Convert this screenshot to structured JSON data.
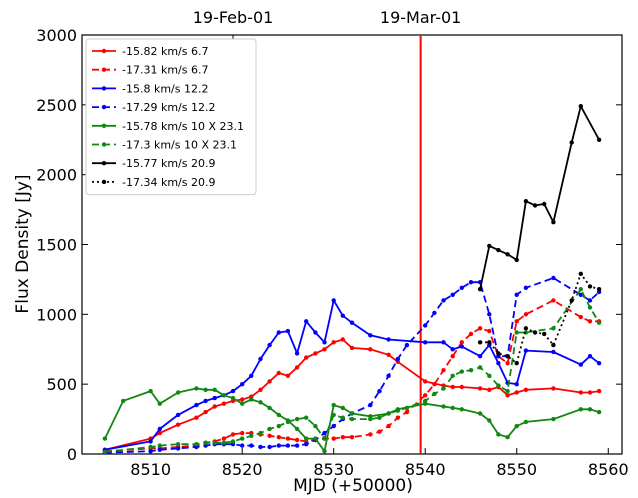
{
  "chart_data": {
    "type": "line",
    "title": "",
    "xlabel": "MJD (+50000)",
    "ylabel": "Flux Density [Jy]",
    "xlim": [
      8502.5,
      8561.5
    ],
    "ylim": [
      0,
      3000
    ],
    "xticks": [
      8510,
      8520,
      8530,
      8540,
      8550,
      8560
    ],
    "yticks": [
      0,
      500,
      1000,
      1500,
      2000,
      2500,
      3000
    ],
    "top_axis": {
      "ticks": [
        {
          "x": 8519,
          "label": "19-Feb-01"
        },
        {
          "x": 8539.5,
          "label": "19-Mar-01"
        }
      ]
    },
    "vertical_line": {
      "x": 8539.5,
      "color": "#ff0000"
    },
    "grid": false,
    "legend_position": "top-left",
    "series": [
      {
        "name": "-15.82 km/s 6.7",
        "color": "#ff0000",
        "style": "solid",
        "x": [
          8505,
          8510,
          8511,
          8513,
          8515,
          8516,
          8517,
          8518,
          8519,
          8520,
          8521,
          8522,
          8523,
          8524,
          8525,
          8526,
          8527,
          8528,
          8529,
          8530,
          8531,
          8532,
          8534,
          8536,
          8537,
          8540,
          8542,
          8543,
          8544,
          8546,
          8547,
          8548,
          8549,
          8550,
          8551,
          8554,
          8557,
          8558,
          8559
        ],
        "y": [
          30,
          110,
          150,
          210,
          260,
          300,
          340,
          360,
          380,
          390,
          410,
          460,
          520,
          580,
          560,
          620,
          690,
          720,
          750,
          800,
          820,
          760,
          750,
          710,
          660,
          520,
          490,
          480,
          480,
          470,
          460,
          480,
          420,
          440,
          460,
          470,
          440,
          440,
          450
        ]
      },
      {
        "name": "-17.31 km/s 6.7",
        "color": "#ff0000",
        "style": "dashed",
        "x": [
          8505,
          8510,
          8511,
          8513,
          8515,
          8516,
          8517,
          8518,
          8519,
          8520,
          8521,
          8522,
          8523,
          8524,
          8525,
          8526,
          8527,
          8528,
          8529,
          8530,
          8531,
          8532,
          8534,
          8535,
          8536,
          8537,
          8538,
          8540,
          8541,
          8542,
          8543,
          8544,
          8545,
          8546,
          8547,
          8548,
          8549,
          8550,
          8551,
          8554,
          8557,
          8558,
          8559
        ],
        "y": [
          20,
          40,
          40,
          50,
          60,
          80,
          90,
          110,
          140,
          150,
          150,
          140,
          130,
          120,
          110,
          100,
          90,
          100,
          110,
          110,
          120,
          120,
          140,
          160,
          200,
          260,
          300,
          420,
          500,
          600,
          700,
          800,
          860,
          900,
          880,
          700,
          650,
          950,
          1000,
          1100,
          980,
          950,
          950
        ]
      },
      {
        "name": "-15.8 km/s 12.2",
        "color": "#0000ff",
        "style": "solid",
        "x": [
          8505,
          8510,
          8511,
          8513,
          8515,
          8516,
          8517,
          8518,
          8519,
          8520,
          8521,
          8522,
          8523,
          8524,
          8525,
          8526,
          8527,
          8528,
          8529,
          8530,
          8531,
          8532,
          8534,
          8536,
          8540,
          8542,
          8543,
          8544,
          8546,
          8547,
          8548,
          8549,
          8550,
          8551,
          8554,
          8557,
          8558,
          8559
        ],
        "y": [
          30,
          90,
          180,
          280,
          350,
          380,
          400,
          420,
          450,
          500,
          560,
          680,
          780,
          870,
          880,
          720,
          950,
          870,
          800,
          1100,
          990,
          940,
          850,
          820,
          800,
          800,
          750,
          770,
          700,
          780,
          650,
          510,
          500,
          740,
          730,
          640,
          700,
          650
        ]
      },
      {
        "name": "-17.29 km/s 12.2",
        "color": "#0000ff",
        "style": "dashed",
        "x": [
          8505,
          8510,
          8511,
          8513,
          8515,
          8516,
          8517,
          8518,
          8519,
          8520,
          8521,
          8522,
          8523,
          8524,
          8525,
          8526,
          8527,
          8528,
          8529,
          8530,
          8531,
          8532,
          8534,
          8535,
          8536,
          8537,
          8538,
          8540,
          8541,
          8542,
          8543,
          8544,
          8545,
          8546,
          8547,
          8548,
          8549,
          8550,
          8551,
          8554,
          8557,
          8558,
          8559
        ],
        "y": [
          10,
          20,
          30,
          40,
          50,
          60,
          70,
          70,
          70,
          60,
          60,
          50,
          50,
          60,
          60,
          60,
          70,
          100,
          150,
          200,
          250,
          290,
          350,
          450,
          560,
          680,
          780,
          920,
          1010,
          1100,
          1140,
          1190,
          1230,
          1230,
          1000,
          700,
          700,
          1140,
          1190,
          1260,
          1140,
          1100,
          1160
        ]
      },
      {
        "name": "-15.78 km/s 10 X 23.1",
        "color": "#118811",
        "style": "solid",
        "x": [
          8505,
          8507,
          8510,
          8511,
          8513,
          8515,
          8516,
          8517,
          8518,
          8519,
          8520,
          8521,
          8522,
          8523,
          8524,
          8525,
          8526,
          8527,
          8528,
          8529,
          8530,
          8531,
          8532,
          8534,
          8536,
          8537,
          8540,
          8542,
          8543,
          8544,
          8546,
          8547,
          8548,
          8549,
          8550,
          8551,
          8554,
          8557,
          8558,
          8559
        ],
        "y": [
          110,
          380,
          450,
          360,
          440,
          470,
          460,
          460,
          420,
          400,
          360,
          390,
          370,
          330,
          280,
          240,
          180,
          110,
          110,
          20,
          350,
          330,
          290,
          270,
          290,
          320,
          360,
          340,
          330,
          320,
          290,
          240,
          140,
          120,
          200,
          230,
          250,
          320,
          320,
          300
        ]
      },
      {
        "name": "-17.3 km/s 10 X 23.1",
        "color": "#118811",
        "style": "dashed",
        "x": [
          8505,
          8510,
          8511,
          8513,
          8515,
          8516,
          8517,
          8518,
          8519,
          8520,
          8521,
          8522,
          8523,
          8524,
          8525,
          8526,
          8527,
          8528,
          8529,
          8530,
          8531,
          8532,
          8534,
          8535,
          8536,
          8537,
          8538,
          8540,
          8541,
          8542,
          8543,
          8544,
          8545,
          8546,
          8547,
          8548,
          8549,
          8550,
          8551,
          8554,
          8557,
          8558,
          8559
        ],
        "y": [
          15,
          50,
          60,
          70,
          70,
          80,
          80,
          80,
          90,
          110,
          130,
          150,
          180,
          200,
          230,
          250,
          260,
          200,
          110,
          280,
          260,
          250,
          250,
          260,
          290,
          310,
          330,
          380,
          430,
          470,
          560,
          590,
          600,
          620,
          560,
          490,
          450,
          870,
          870,
          900,
          1180,
          1050,
          940
        ]
      },
      {
        "name": "-15.77 km/s 20.9",
        "color": "#000000",
        "style": "solid",
        "x": [
          8546,
          8547,
          8548,
          8549,
          8550,
          8551,
          8552,
          8553,
          8554,
          8556,
          8557,
          8559
        ],
        "y": [
          1180,
          1490,
          1460,
          1430,
          1390,
          1810,
          1780,
          1790,
          1660,
          2230,
          2490,
          2250
        ]
      },
      {
        "name": "-17.34 km/s 20.9",
        "color": "#000000",
        "style": "dotted",
        "x": [
          8546,
          8547,
          8548,
          8549,
          8550,
          8551,
          8552,
          8553,
          8554,
          8556,
          8557,
          8558,
          8559
        ],
        "y": [
          800,
          800,
          720,
          700,
          650,
          900,
          870,
          860,
          780,
          1100,
          1290,
          1200,
          1180
        ]
      }
    ]
  }
}
